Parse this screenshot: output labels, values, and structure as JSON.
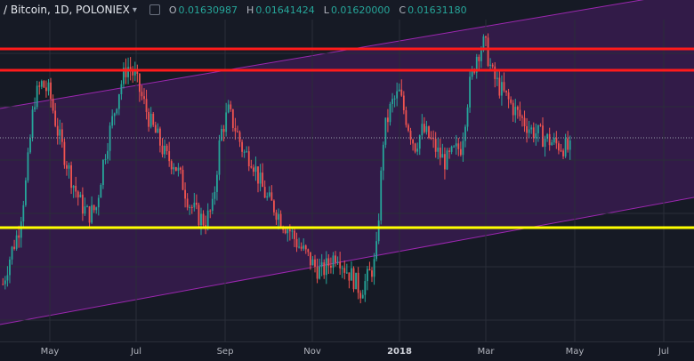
{
  "header": {
    "symbol": "/ Bitcoin, 1D, POLONIEX",
    "dropdown_icon": "chevron-down",
    "ohlc": [
      {
        "key": "O",
        "value": "0.01630987"
      },
      {
        "key": "H",
        "value": "0.01641424"
      },
      {
        "key": "L",
        "value": "0.01620000"
      },
      {
        "key": "C",
        "value": "0.01631180"
      }
    ]
  },
  "x_axis": {
    "labels": [
      {
        "text": "May",
        "bold": false
      },
      {
        "text": "Jul",
        "bold": false
      },
      {
        "text": "Sep",
        "bold": false
      },
      {
        "text": "Nov",
        "bold": false
      },
      {
        "text": "2018",
        "bold": true
      },
      {
        "text": "Mar",
        "bold": false
      },
      {
        "text": "May",
        "bold": false
      },
      {
        "text": "Jul",
        "bold": false
      }
    ]
  },
  "colors": {
    "background": "#161a25",
    "channel_fill": "#4b1d66",
    "channel_line": "#9c27b0",
    "resistance": "#ff1b1b",
    "support": "#ffff00",
    "up_candle": "#26a69a",
    "down_candle": "#ef5350",
    "last_price_line": "#9aa1ad"
  },
  "chart_data": {
    "type": "candlestick",
    "chart_type": "candlestick",
    "drawings": [
      {
        "type": "channel",
        "color": "purple",
        "direction": "ascending"
      },
      {
        "type": "horizontal-line",
        "color": "red",
        "count": 2
      },
      {
        "type": "horizontal-line",
        "color": "yellow",
        "count": 1
      }
    ],
    "series": [
      {
        "values": [
          0.0105,
          0.0118,
          0.0128,
          0.015,
          0.0185,
          0.0192,
          0.0188,
          0.0172,
          0.016,
          0.0149,
          0.014,
          0.0135,
          0.0138,
          0.016,
          0.0175,
          0.019,
          0.02,
          0.0195,
          0.0185,
          0.0175,
          0.0168,
          0.016,
          0.0158,
          0.015,
          0.014,
          0.0135,
          0.0132,
          0.0138,
          0.017,
          0.018,
          0.0172,
          0.0162,
          0.016,
          0.015,
          0.0142,
          0.0138,
          0.0132,
          0.0128,
          0.0122,
          0.0118,
          0.0113,
          0.011,
          0.0114,
          0.0119,
          0.0112,
          0.0108,
          0.0102,
          0.0108,
          0.0115,
          0.017,
          0.0183,
          0.0188,
          0.0176,
          0.0165,
          0.0172,
          0.0168,
          0.0162,
          0.0158,
          0.0162,
          0.0165,
          0.019,
          0.0205,
          0.021,
          0.0196,
          0.019,
          0.0185,
          0.018,
          0.0176,
          0.0172,
          0.017,
          0.0168,
          0.0166,
          0.0165,
          0.0163
        ]
      }
    ]
  }
}
